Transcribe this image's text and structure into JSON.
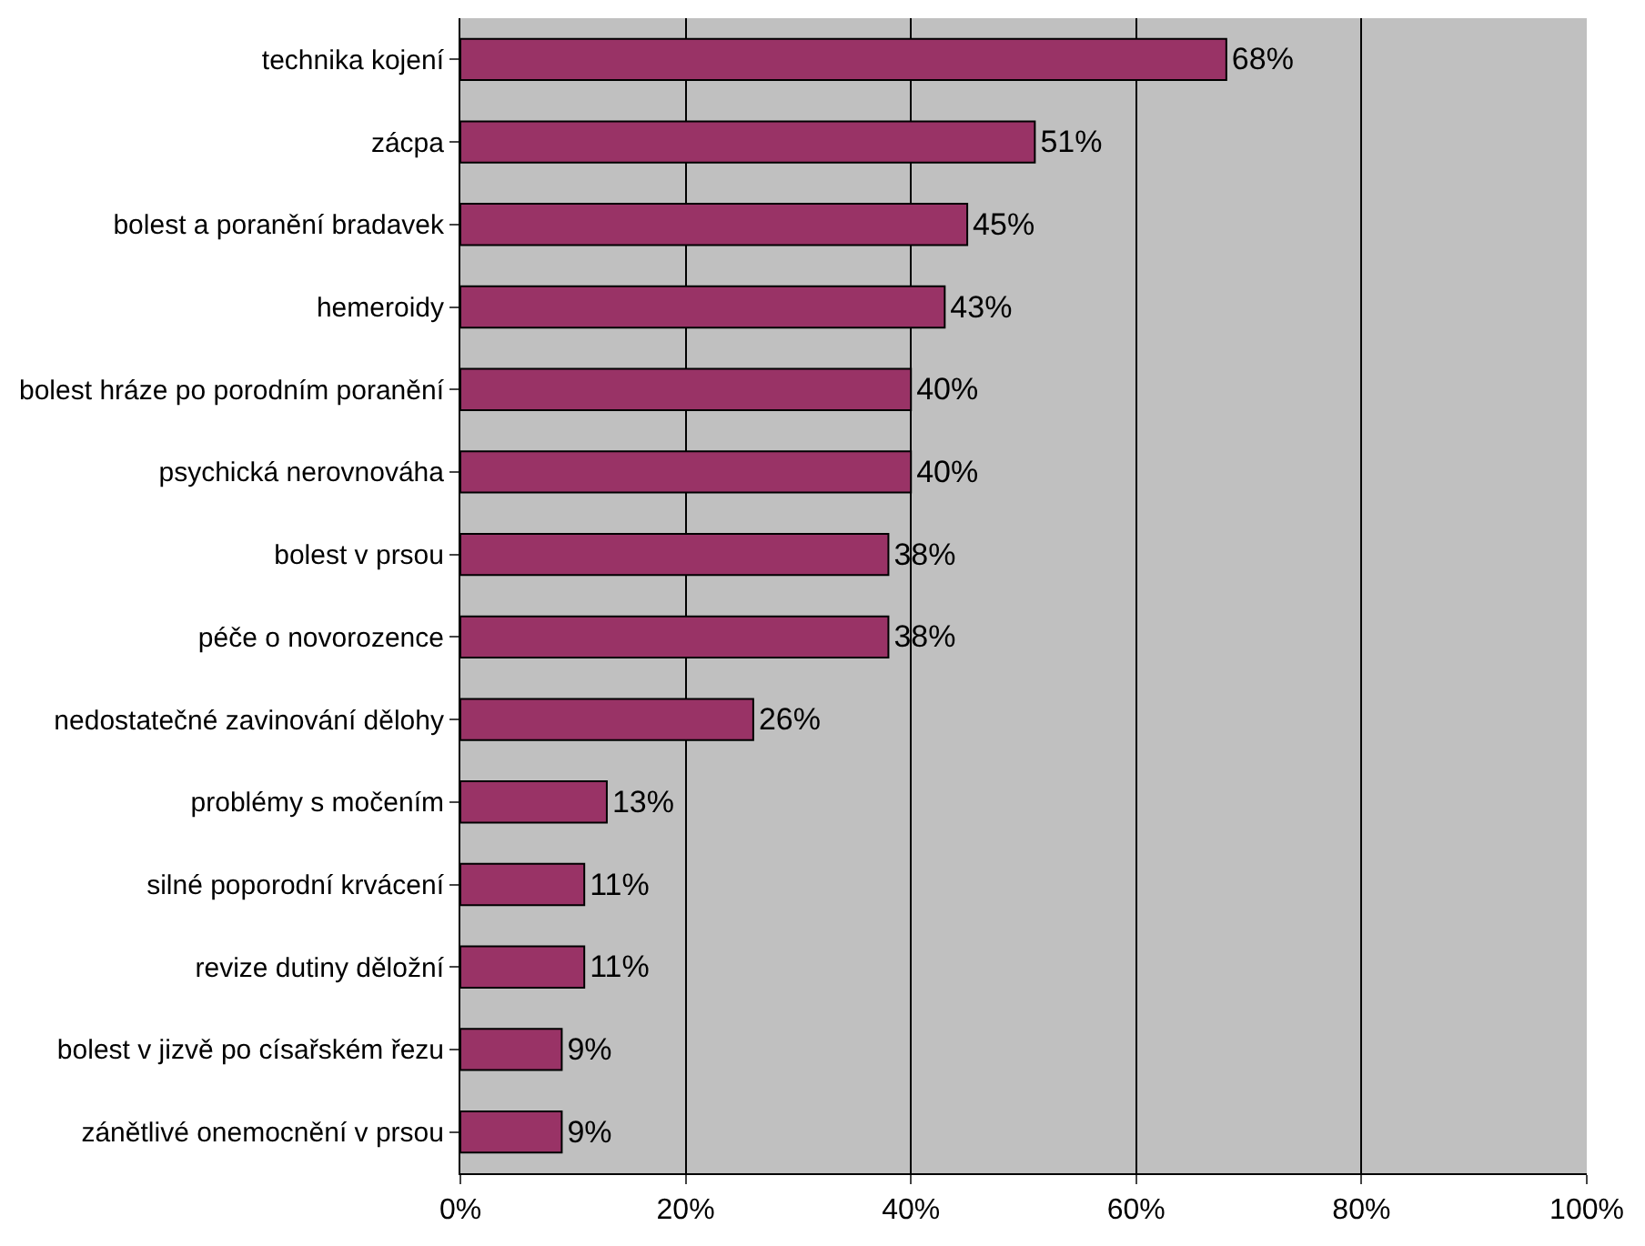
{
  "chart_data": {
    "type": "bar",
    "orientation": "horizontal",
    "categories": [
      "technika kojení",
      "zácpa",
      "bolest a poranění bradavek",
      "hemeroidy",
      "bolest hráze po porodním poranění",
      "psychická nerovnováha",
      "bolest v prsou",
      "péče o novorozence",
      "nedostatečné zavinování dělohy",
      "problémy s močením",
      "silné poporodní krvácení",
      "revize dutiny děložní",
      "bolest v jizvě po císařském řezu",
      "zánětlivé onemocnění v prsou"
    ],
    "values": [
      68,
      51,
      45,
      43,
      40,
      40,
      38,
      38,
      26,
      13,
      11,
      11,
      9,
      9
    ],
    "value_labels": [
      "68%",
      "51%",
      "45%",
      "43%",
      "40%",
      "40%",
      "38%",
      "38%",
      "26%",
      "13%",
      "11%",
      "11%",
      "9%",
      "9%"
    ],
    "color": "#993366",
    "xlim": [
      0,
      100
    ],
    "xticks": [
      {
        "value": 0,
        "label": "0%"
      },
      {
        "value": 20,
        "label": "20%"
      },
      {
        "value": 40,
        "label": "40%"
      },
      {
        "value": 60,
        "label": "60%"
      },
      {
        "value": 80,
        "label": "80%"
      },
      {
        "value": 100,
        "label": "100%"
      }
    ],
    "grid": "x",
    "legend": false
  }
}
